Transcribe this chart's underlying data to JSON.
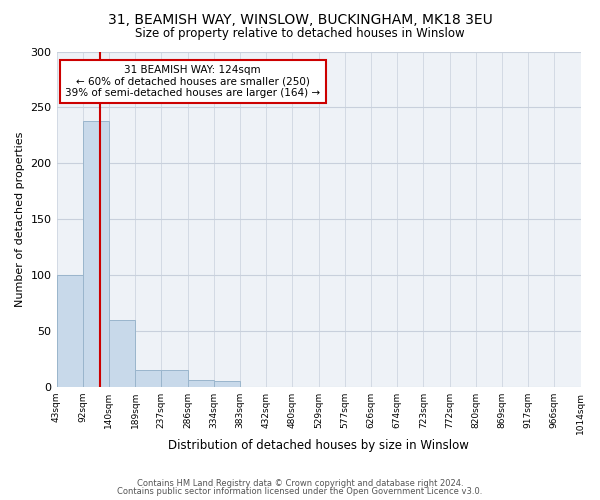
{
  "title1": "31, BEAMISH WAY, WINSLOW, BUCKINGHAM, MK18 3EU",
  "title2": "Size of property relative to detached houses in Winslow",
  "xlabel": "Distribution of detached houses by size in Winslow",
  "ylabel": "Number of detached properties",
  "bar_values": [
    100,
    238,
    60,
    15,
    15,
    6,
    5,
    0,
    0,
    0,
    0,
    0,
    0,
    0,
    0,
    0,
    0,
    0,
    0,
    0
  ],
  "bin_labels": [
    "43sqm",
    "92sqm",
    "140sqm",
    "189sqm",
    "237sqm",
    "286sqm",
    "334sqm",
    "383sqm",
    "432sqm",
    "480sqm",
    "529sqm",
    "577sqm",
    "626sqm",
    "674sqm",
    "723sqm",
    "772sqm",
    "820sqm",
    "869sqm",
    "917sqm",
    "966sqm",
    "1014sqm"
  ],
  "bar_color": "#c8d9ea",
  "bar_edge_color": "#9ab5cc",
  "vline_color": "#cc0000",
  "vline_x": 1.5,
  "annotation_text": "31 BEAMISH WAY: 124sqm\n← 60% of detached houses are smaller (250)\n39% of semi-detached houses are larger (164) →",
  "annotation_box_color": "#ffffff",
  "annotation_box_edge": "#cc0000",
  "ylim": [
    0,
    300
  ],
  "yticks": [
    0,
    50,
    100,
    150,
    200,
    250,
    300
  ],
  "footer1": "Contains HM Land Registry data © Crown copyright and database right 2024.",
  "footer2": "Contains public sector information licensed under the Open Government Licence v3.0.",
  "bg_color": "#ffffff",
  "plot_bg_color": "#eef2f7",
  "grid_color": "#c8d0dc"
}
